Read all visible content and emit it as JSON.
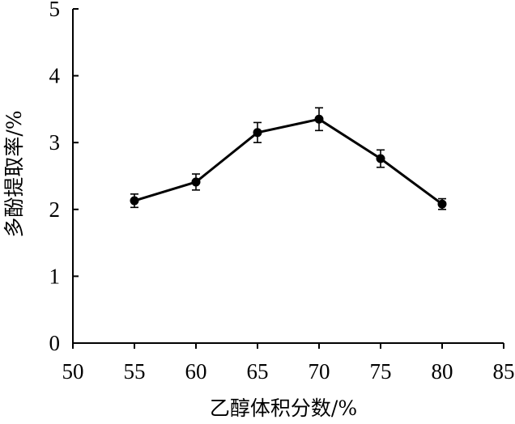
{
  "chart_data": {
    "type": "line",
    "title": "",
    "xlabel": "乙醇体积分数/%",
    "ylabel": "多酚提取率/%",
    "xlim": [
      50,
      85
    ],
    "ylim": [
      0,
      5
    ],
    "x_ticks": [
      "50",
      "55",
      "60",
      "65",
      "70",
      "75",
      "80",
      "85"
    ],
    "y_ticks": [
      "0",
      "1",
      "2",
      "3",
      "4",
      "5"
    ],
    "grid": false,
    "legend": "none",
    "x": [
      55,
      60,
      65,
      70,
      75,
      80
    ],
    "y": [
      2.13,
      2.41,
      3.15,
      3.35,
      2.76,
      2.08
    ],
    "error": [
      0.1,
      0.12,
      0.15,
      0.17,
      0.13,
      0.08
    ],
    "colors": {
      "line": "#000000",
      "marker": "#000000",
      "axis": "#000000"
    }
  }
}
